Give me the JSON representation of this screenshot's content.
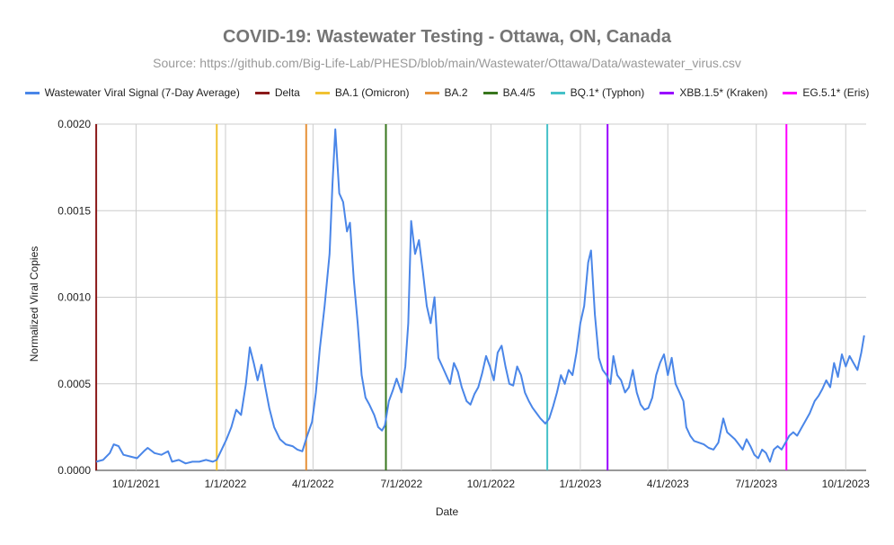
{
  "chart_data": {
    "type": "line",
    "title": "COVID-19: Wastewater Testing - Ottawa, ON, Canada",
    "subtitle": "Source: https://github.com/Big-Life-Lab/PHESD/blob/main/Wastewater/Ottawa/Data/wastewater_virus.csv",
    "xlabel": "Date",
    "ylabel": "Normalized Viral Copies",
    "ylim": [
      0,
      0.002
    ],
    "y_ticks": [
      "0.0000",
      "0.0005",
      "0.0010",
      "0.0015",
      "0.0020"
    ],
    "x_range": [
      "2021-08-20",
      "2023-10-22"
    ],
    "x_ticks": [
      {
        "date": "2021-10-01",
        "label": "10/1/2021"
      },
      {
        "date": "2022-01-01",
        "label": "1/1/2022"
      },
      {
        "date": "2022-04-01",
        "label": "4/1/2022"
      },
      {
        "date": "2022-07-01",
        "label": "7/1/2022"
      },
      {
        "date": "2022-10-01",
        "label": "10/1/2022"
      },
      {
        "date": "2023-01-01",
        "label": "1/1/2023"
      },
      {
        "date": "2023-04-01",
        "label": "4/1/2023"
      },
      {
        "date": "2023-07-01",
        "label": "7/1/2023"
      },
      {
        "date": "2023-10-01",
        "label": "10/1/2023"
      }
    ],
    "grid": true,
    "legend_position": "top",
    "series": [
      {
        "name": "Wastewater Viral Signal (7-Day Average)",
        "color": "#4a86e8",
        "points": [
          [
            "2021-08-21",
            5e-05
          ],
          [
            "2021-08-28",
            6e-05
          ],
          [
            "2021-09-04",
            0.0001
          ],
          [
            "2021-09-08",
            0.00015
          ],
          [
            "2021-09-13",
            0.00014
          ],
          [
            "2021-09-18",
            9e-05
          ],
          [
            "2021-09-25",
            8e-05
          ],
          [
            "2021-10-02",
            7e-05
          ],
          [
            "2021-10-09",
            0.00011
          ],
          [
            "2021-10-13",
            0.00013
          ],
          [
            "2021-10-20",
            0.0001
          ],
          [
            "2021-10-27",
            9e-05
          ],
          [
            "2021-11-03",
            0.00011
          ],
          [
            "2021-11-07",
            5e-05
          ],
          [
            "2021-11-14",
            6e-05
          ],
          [
            "2021-11-21",
            4e-05
          ],
          [
            "2021-11-28",
            5e-05
          ],
          [
            "2021-12-05",
            5e-05
          ],
          [
            "2021-12-12",
            6e-05
          ],
          [
            "2021-12-19",
            5e-05
          ],
          [
            "2021-12-23",
            6e-05
          ],
          [
            "2021-12-28",
            0.00012
          ],
          [
            "2022-01-02",
            0.00018
          ],
          [
            "2022-01-07",
            0.00025
          ],
          [
            "2022-01-12",
            0.00035
          ],
          [
            "2022-01-17",
            0.00032
          ],
          [
            "2022-01-22",
            0.0005
          ],
          [
            "2022-01-26",
            0.00071
          ],
          [
            "2022-01-30",
            0.00062
          ],
          [
            "2022-02-03",
            0.00052
          ],
          [
            "2022-02-07",
            0.00061
          ],
          [
            "2022-02-11",
            0.00048
          ],
          [
            "2022-02-15",
            0.00036
          ],
          [
            "2022-02-20",
            0.00025
          ],
          [
            "2022-02-26",
            0.00018
          ],
          [
            "2022-03-04",
            0.00015
          ],
          [
            "2022-03-11",
            0.00014
          ],
          [
            "2022-03-16",
            0.00012
          ],
          [
            "2022-03-21",
            0.00011
          ],
          [
            "2022-03-26",
            0.0002
          ],
          [
            "2022-03-31",
            0.00028
          ],
          [
            "2022-04-04",
            0.00045
          ],
          [
            "2022-04-08",
            0.0007
          ],
          [
            "2022-04-13",
            0.00095
          ],
          [
            "2022-04-18",
            0.00125
          ],
          [
            "2022-04-21",
            0.00165
          ],
          [
            "2022-04-24",
            0.00197
          ],
          [
            "2022-04-28",
            0.0016
          ],
          [
            "2022-05-02",
            0.00155
          ],
          [
            "2022-05-06",
            0.00138
          ],
          [
            "2022-05-09",
            0.00143
          ],
          [
            "2022-05-13",
            0.0011
          ],
          [
            "2022-05-17",
            0.00085
          ],
          [
            "2022-05-21",
            0.00055
          ],
          [
            "2022-05-25",
            0.00042
          ],
          [
            "2022-05-29",
            0.00038
          ],
          [
            "2022-06-03",
            0.00032
          ],
          [
            "2022-06-07",
            0.00025
          ],
          [
            "2022-06-11",
            0.00023
          ],
          [
            "2022-06-14",
            0.00026
          ],
          [
            "2022-06-18",
            0.0004
          ],
          [
            "2022-06-22",
            0.00046
          ],
          [
            "2022-06-26",
            0.00053
          ],
          [
            "2022-07-01",
            0.00045
          ],
          [
            "2022-07-05",
            0.0006
          ],
          [
            "2022-07-08",
            0.00085
          ],
          [
            "2022-07-11",
            0.00144
          ],
          [
            "2022-07-15",
            0.00125
          ],
          [
            "2022-07-19",
            0.00133
          ],
          [
            "2022-07-23",
            0.00115
          ],
          [
            "2022-07-27",
            0.00095
          ],
          [
            "2022-07-31",
            0.00085
          ],
          [
            "2022-08-04",
            0.001
          ],
          [
            "2022-08-08",
            0.00065
          ],
          [
            "2022-08-12",
            0.0006
          ],
          [
            "2022-08-16",
            0.00055
          ],
          [
            "2022-08-20",
            0.0005
          ],
          [
            "2022-08-24",
            0.00062
          ],
          [
            "2022-08-28",
            0.00057
          ],
          [
            "2022-09-01",
            0.00048
          ],
          [
            "2022-09-06",
            0.0004
          ],
          [
            "2022-09-10",
            0.00038
          ],
          [
            "2022-09-14",
            0.00044
          ],
          [
            "2022-09-18",
            0.00048
          ],
          [
            "2022-09-22",
            0.00056
          ],
          [
            "2022-09-26",
            0.00066
          ],
          [
            "2022-09-30",
            0.0006
          ],
          [
            "2022-10-04",
            0.00052
          ],
          [
            "2022-10-08",
            0.00068
          ],
          [
            "2022-10-12",
            0.00072
          ],
          [
            "2022-10-16",
            0.0006
          ],
          [
            "2022-10-20",
            0.0005
          ],
          [
            "2022-10-24",
            0.00049
          ],
          [
            "2022-10-28",
            0.0006
          ],
          [
            "2022-11-01",
            0.00055
          ],
          [
            "2022-11-05",
            0.00045
          ],
          [
            "2022-11-09",
            0.0004
          ],
          [
            "2022-11-13",
            0.00036
          ],
          [
            "2022-11-17",
            0.00033
          ],
          [
            "2022-11-21",
            0.0003
          ],
          [
            "2022-11-26",
            0.00027
          ],
          [
            "2022-11-30",
            0.0003
          ],
          [
            "2022-12-04",
            0.00037
          ],
          [
            "2022-12-08",
            0.00045
          ],
          [
            "2022-12-12",
            0.00055
          ],
          [
            "2022-12-16",
            0.0005
          ],
          [
            "2022-12-20",
            0.00058
          ],
          [
            "2022-12-24",
            0.00055
          ],
          [
            "2022-12-28",
            0.00068
          ],
          [
            "2023-01-01",
            0.00085
          ],
          [
            "2023-01-05",
            0.00095
          ],
          [
            "2023-01-09",
            0.0012
          ],
          [
            "2023-01-12",
            0.00127
          ],
          [
            "2023-01-16",
            0.0009
          ],
          [
            "2023-01-20",
            0.00065
          ],
          [
            "2023-01-24",
            0.00058
          ],
          [
            "2023-01-28",
            0.00055
          ],
          [
            "2023-02-01",
            0.0005
          ],
          [
            "2023-02-04",
            0.00066
          ],
          [
            "2023-02-08",
            0.00055
          ],
          [
            "2023-02-12",
            0.00052
          ],
          [
            "2023-02-16",
            0.00045
          ],
          [
            "2023-02-20",
            0.00048
          ],
          [
            "2023-02-24",
            0.00058
          ],
          [
            "2023-02-28",
            0.00045
          ],
          [
            "2023-03-04",
            0.00038
          ],
          [
            "2023-03-08",
            0.00035
          ],
          [
            "2023-03-12",
            0.00036
          ],
          [
            "2023-03-16",
            0.00042
          ],
          [
            "2023-03-20",
            0.00055
          ],
          [
            "2023-03-24",
            0.00062
          ],
          [
            "2023-03-28",
            0.00067
          ],
          [
            "2023-04-01",
            0.00055
          ],
          [
            "2023-04-05",
            0.00065
          ],
          [
            "2023-04-09",
            0.0005
          ],
          [
            "2023-04-13",
            0.00045
          ],
          [
            "2023-04-17",
            0.0004
          ],
          [
            "2023-04-20",
            0.00025
          ],
          [
            "2023-04-24",
            0.0002
          ],
          [
            "2023-04-28",
            0.00017
          ],
          [
            "2023-05-03",
            0.00016
          ],
          [
            "2023-05-08",
            0.00015
          ],
          [
            "2023-05-13",
            0.00013
          ],
          [
            "2023-05-18",
            0.00012
          ],
          [
            "2023-05-23",
            0.00016
          ],
          [
            "2023-05-28",
            0.0003
          ],
          [
            "2023-06-01",
            0.00022
          ],
          [
            "2023-06-05",
            0.0002
          ],
          [
            "2023-06-09",
            0.00018
          ],
          [
            "2023-06-13",
            0.00015
          ],
          [
            "2023-06-17",
            0.00012
          ],
          [
            "2023-06-21",
            0.00018
          ],
          [
            "2023-06-25",
            0.00014
          ],
          [
            "2023-06-29",
            9e-05
          ],
          [
            "2023-07-03",
            7e-05
          ],
          [
            "2023-07-07",
            0.00012
          ],
          [
            "2023-07-11",
            0.0001
          ],
          [
            "2023-07-15",
            5e-05
          ],
          [
            "2023-07-19",
            0.00012
          ],
          [
            "2023-07-23",
            0.00014
          ],
          [
            "2023-07-27",
            0.00012
          ],
          [
            "2023-07-31",
            0.00016
          ],
          [
            "2023-08-04",
            0.0002
          ],
          [
            "2023-08-08",
            0.00022
          ],
          [
            "2023-08-12",
            0.0002
          ],
          [
            "2023-08-16",
            0.00024
          ],
          [
            "2023-08-20",
            0.00028
          ],
          [
            "2023-08-25",
            0.00033
          ],
          [
            "2023-08-30",
            0.0004
          ],
          [
            "2023-09-03",
            0.00043
          ],
          [
            "2023-09-07",
            0.00047
          ],
          [
            "2023-09-11",
            0.00052
          ],
          [
            "2023-09-15",
            0.00048
          ],
          [
            "2023-09-19",
            0.00062
          ],
          [
            "2023-09-23",
            0.00054
          ],
          [
            "2023-09-27",
            0.00067
          ],
          [
            "2023-10-01",
            0.0006
          ],
          [
            "2023-10-05",
            0.00066
          ],
          [
            "2023-10-09",
            0.00062
          ],
          [
            "2023-10-13",
            0.00058
          ],
          [
            "2023-10-17",
            0.00068
          ],
          [
            "2023-10-20",
            0.00078
          ]
        ]
      }
    ],
    "variants": [
      {
        "name": "Delta",
        "color": "#8b1a1a",
        "date": "2021-08-21"
      },
      {
        "name": "BA.1 (Omicron)",
        "color": "#f1c232",
        "date": "2021-12-23"
      },
      {
        "name": "BA.2",
        "color": "#e69138",
        "date": "2022-03-25"
      },
      {
        "name": "BA.4/5",
        "color": "#38761d",
        "date": "2022-06-15"
      },
      {
        "name": "BQ.1* (Typhon)",
        "color": "#45c1c8",
        "date": "2022-11-28"
      },
      {
        "name": "XBB.1.5* (Kraken)",
        "color": "#9900ff",
        "date": "2023-01-29"
      },
      {
        "name": "EG.5.1* (Eris)",
        "color": "#ff00ff",
        "date": "2023-08-01"
      }
    ]
  }
}
